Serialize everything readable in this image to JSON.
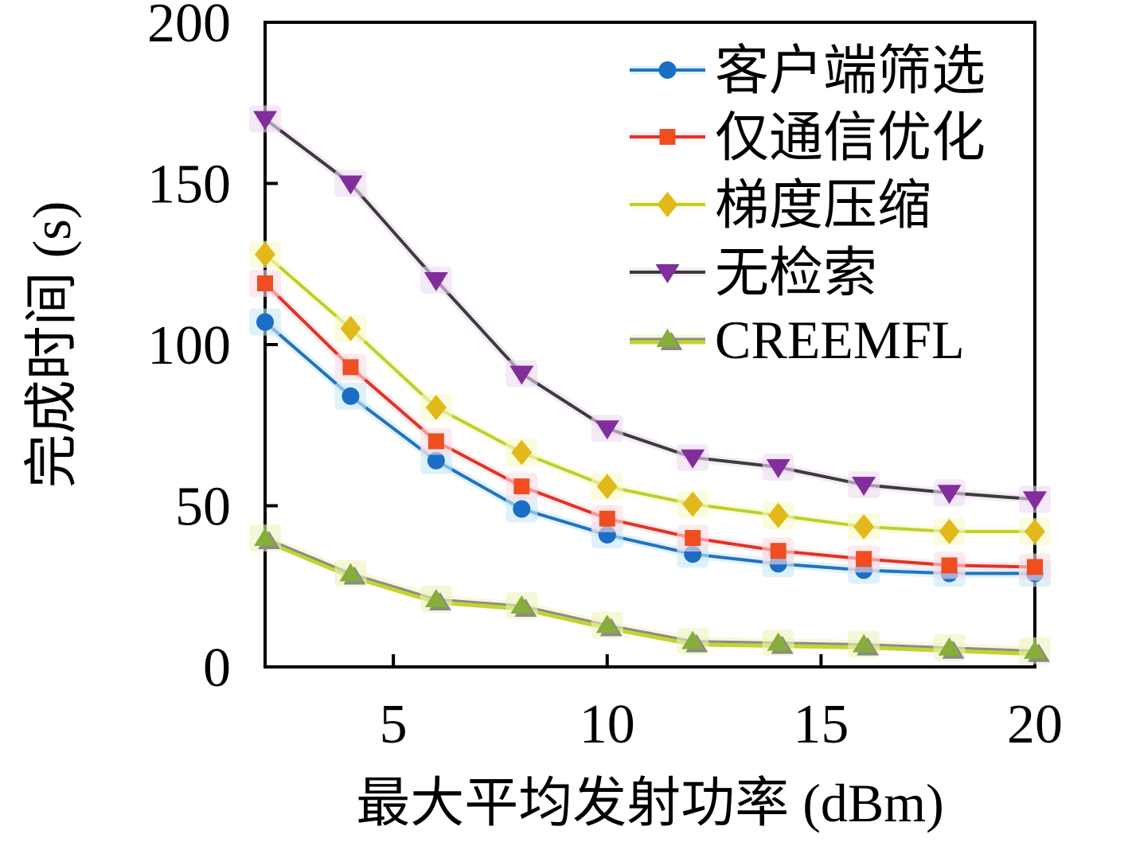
{
  "chart_data": {
    "type": "line",
    "x": [
      2,
      4,
      6,
      8,
      10,
      12,
      14,
      16,
      18,
      20
    ],
    "series": [
      {
        "name": "客户端筛选",
        "marker": "circle",
        "line_color": "#2373bd",
        "marker_color": "#1a6ec5",
        "glow": "#c9e7f8",
        "values": [
          107,
          84,
          64,
          49,
          41,
          35,
          32,
          30,
          29,
          29
        ]
      },
      {
        "name": "仅通信优化",
        "marker": "square",
        "line_color": "#e23324",
        "marker_color": "#f04d20",
        "glow": "#fbdce2",
        "values": [
          119,
          93,
          70,
          56,
          46,
          40,
          36,
          33.5,
          31.5,
          31
        ]
      },
      {
        "name": "梯度压缩",
        "marker": "diamond",
        "line_color": "#bdd02b",
        "marker_color": "#e2b91b",
        "glow": "#f8f9c8",
        "values": [
          128,
          105,
          80.5,
          66.5,
          56,
          50.5,
          47,
          43.5,
          42,
          42
        ]
      },
      {
        "name": "无检索",
        "marker": "triangle-down",
        "line_color": "#3c3c3c",
        "marker_color": "#822d9c",
        "glow": "#eddbf2",
        "values": [
          170,
          150,
          120,
          91,
          74,
          65,
          62,
          56.5,
          54,
          52
        ]
      },
      {
        "name": "CREEMFL",
        "marker": "triangle-up",
        "line_color": "#8b8b8b",
        "line_under_color": "#c3d42c",
        "marker_color": "#87ad3a",
        "marker_shadow": "#8a8a8a",
        "glow": "#eff4bc",
        "values": [
          40,
          29,
          21,
          19,
          13,
          8,
          7.5,
          7,
          6,
          5
        ]
      }
    ],
    "xlabel": "最大平均发射功率 (dBm)",
    "ylabel": "完成时间 (s)",
    "xticks": [
      5,
      10,
      15,
      20
    ],
    "yticks": [
      0,
      50,
      100,
      150,
      200
    ],
    "xlim": [
      2,
      20
    ],
    "ylim": [
      0,
      200
    ],
    "grid": false,
    "legend_position": "top-right"
  }
}
